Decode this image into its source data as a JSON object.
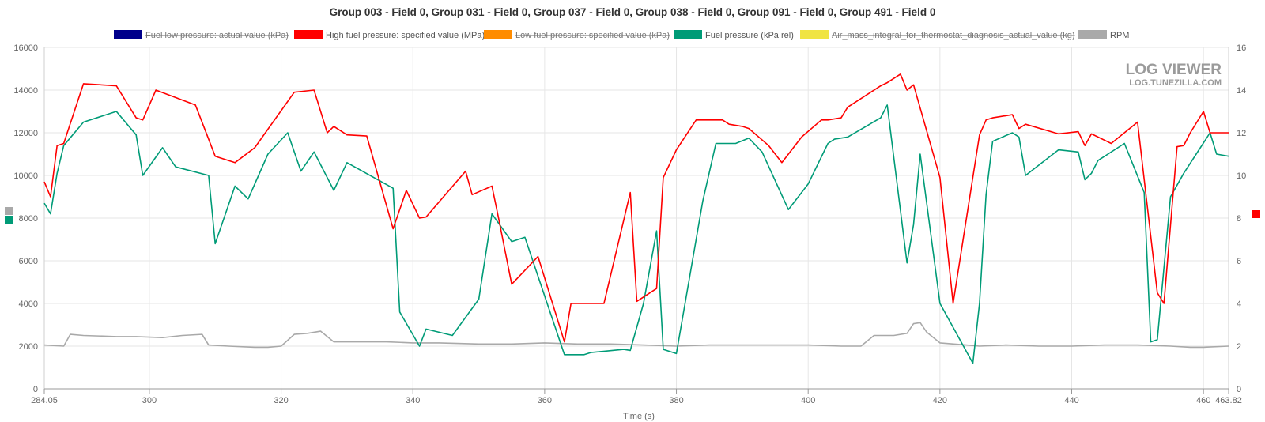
{
  "chart_data": {
    "type": "line",
    "title": "Group 003 - Field 0, Group 031 - Field 0, Group 037 - Field 0, Group 038 - Field 0, Group 091 - Field 0, Group 491 - Field 0",
    "xlabel": "Time (s)",
    "ylabel_left": "",
    "ylabel_right": "",
    "xlim": [
      284.05,
      463.82
    ],
    "ylim_left": [
      0,
      16000
    ],
    "ylim_right": [
      0,
      16
    ],
    "x_ticks": [
      "284.05",
      "300",
      "320",
      "340",
      "360",
      "380",
      "400",
      "420",
      "440",
      "460",
      "463.82"
    ],
    "y_ticks_left": [
      "0",
      "2000",
      "4000",
      "6000",
      "8000",
      "10000",
      "12000",
      "14000",
      "16000"
    ],
    "y_ticks_right": [
      "0",
      "2",
      "4",
      "6",
      "8",
      "10",
      "12",
      "14",
      "16"
    ],
    "grid": true,
    "legend_position": "top",
    "watermark": {
      "line1": "LOG VIEWER",
      "line2": "LOG.TUNEZILLA.COM"
    },
    "series": [
      {
        "name": "Fuel low pressure: actual value (kPa)",
        "color": "#00008b",
        "hidden": true,
        "axis": "left",
        "x": [],
        "y": []
      },
      {
        "name": "High fuel pressure: specified value (MPa)",
        "color": "#ff0000",
        "hidden": false,
        "axis": "right",
        "x": [
          284.05,
          285,
          286,
          287,
          290,
          295,
          298,
          299,
          301,
          307,
          310,
          313,
          316,
          322,
          325,
          327,
          328,
          330,
          333,
          337,
          339,
          341,
          342,
          348,
          349,
          352,
          353,
          355,
          359,
          363,
          364,
          369,
          373,
          374,
          377,
          378,
          380,
          383,
          387,
          388,
          390,
          391,
          394,
          396,
          399,
          402,
          403,
          405,
          406,
          411,
          412,
          414,
          415,
          416,
          420,
          422,
          426,
          427,
          428,
          431,
          432,
          433,
          438,
          441,
          442,
          443,
          444,
          446,
          450,
          453,
          454,
          456,
          457,
          458,
          460,
          461,
          462,
          463.82
        ],
        "y": [
          9.7,
          9.0,
          11.4,
          11.5,
          14.3,
          14.2,
          12.7,
          12.6,
          14.0,
          13.3,
          10.9,
          10.6,
          11.3,
          13.9,
          14.0,
          12.0,
          12.3,
          11.9,
          11.85,
          7.5,
          9.3,
          8.0,
          8.05,
          10.2,
          9.1,
          9.5,
          8.0,
          4.9,
          6.2,
          2.2,
          4.0,
          4.0,
          9.2,
          4.1,
          4.7,
          9.9,
          11.2,
          12.6,
          12.6,
          12.4,
          12.3,
          12.2,
          11.4,
          10.6,
          11.8,
          12.6,
          12.6,
          12.7,
          13.2,
          14.2,
          14.35,
          14.75,
          14.0,
          14.25,
          9.9,
          4.0,
          11.9,
          12.6,
          12.7,
          12.85,
          12.2,
          12.4,
          11.95,
          12.05,
          11.4,
          11.95,
          11.8,
          11.5,
          12.5,
          4.5,
          4.0,
          11.35,
          11.4,
          12.0,
          13.0,
          12.0,
          12.0,
          12.0
        ]
      },
      {
        "name": "Low fuel pressure: specified value (kPa)",
        "color": "#ff8c00",
        "hidden": true,
        "axis": "left",
        "x": [],
        "y": []
      },
      {
        "name": "Fuel pressure (kPa rel)",
        "color": "#009b77",
        "hidden": false,
        "axis": "left",
        "x": [
          284.05,
          285,
          286,
          287,
          290,
          295,
          298,
          299,
          302,
          304,
          309,
          310,
          313,
          315,
          318,
          321,
          323,
          325,
          328,
          330,
          337,
          338,
          341,
          342,
          346,
          350,
          352,
          355,
          357,
          363,
          366,
          367,
          372,
          373,
          375,
          377,
          378,
          380,
          384,
          386,
          389,
          391,
          393,
          397,
          400,
          403,
          404,
          406,
          411,
          412,
          415,
          416,
          417,
          420,
          425,
          426,
          427,
          428,
          431,
          432,
          433,
          438,
          441,
          442,
          443,
          444,
          448,
          451,
          452,
          453,
          455,
          457,
          461,
          462,
          463.82
        ],
        "y": [
          8700,
          8200,
          10100,
          11400,
          12500,
          13000,
          11900,
          10000,
          11300,
          10400,
          10000,
          6800,
          9500,
          8900,
          11000,
          12000,
          10200,
          11100,
          9300,
          10600,
          9400,
          3600,
          2000,
          2800,
          2500,
          4200,
          8200,
          6900,
          7100,
          1600,
          1600,
          1700,
          1850,
          1800,
          4000,
          7400,
          1850,
          1650,
          8800,
          11500,
          11500,
          11750,
          11100,
          8400,
          9600,
          11500,
          11700,
          11800,
          12700,
          13300,
          5900,
          7700,
          11000,
          4000,
          1200,
          4000,
          9100,
          11600,
          12000,
          11800,
          10000,
          11200,
          11100,
          9800,
          10100,
          10700,
          11500,
          9200,
          2200,
          2300,
          9000,
          10100,
          12000,
          11000,
          10900
        ]
      },
      {
        "name": "Air_mass_integral_for_thermostat_diagnosis_actual_value (kg)",
        "color": "#f0e442",
        "hidden": true,
        "axis": "left",
        "x": [],
        "y": []
      },
      {
        "name": "RPM",
        "color": "#a9a9a9",
        "hidden": false,
        "axis": "left",
        "x": [
          284.05,
          287,
          288,
          290,
          295,
          298,
          302,
          305,
          308,
          309,
          312,
          316,
          318,
          320,
          322,
          324,
          326,
          328,
          330,
          332,
          336,
          340,
          344,
          350,
          355,
          360,
          365,
          370,
          375,
          380,
          385,
          390,
          395,
          400,
          405,
          408,
          410,
          413,
          415,
          416,
          417,
          418,
          420,
          424,
          426,
          430,
          435,
          440,
          445,
          450,
          455,
          458,
          460,
          463.82
        ],
        "y": [
          2050,
          2000,
          2550,
          2500,
          2450,
          2450,
          2400,
          2500,
          2550,
          2050,
          2000,
          1950,
          1950,
          2000,
          2550,
          2600,
          2700,
          2200,
          2200,
          2200,
          2200,
          2150,
          2150,
          2100,
          2100,
          2150,
          2100,
          2100,
          2050,
          2000,
          2050,
          2050,
          2050,
          2050,
          2000,
          2000,
          2500,
          2500,
          2600,
          3050,
          3100,
          2650,
          2150,
          2050,
          2000,
          2050,
          2000,
          2000,
          2050,
          2050,
          2000,
          1950,
          1950,
          2000
        ]
      }
    ]
  }
}
